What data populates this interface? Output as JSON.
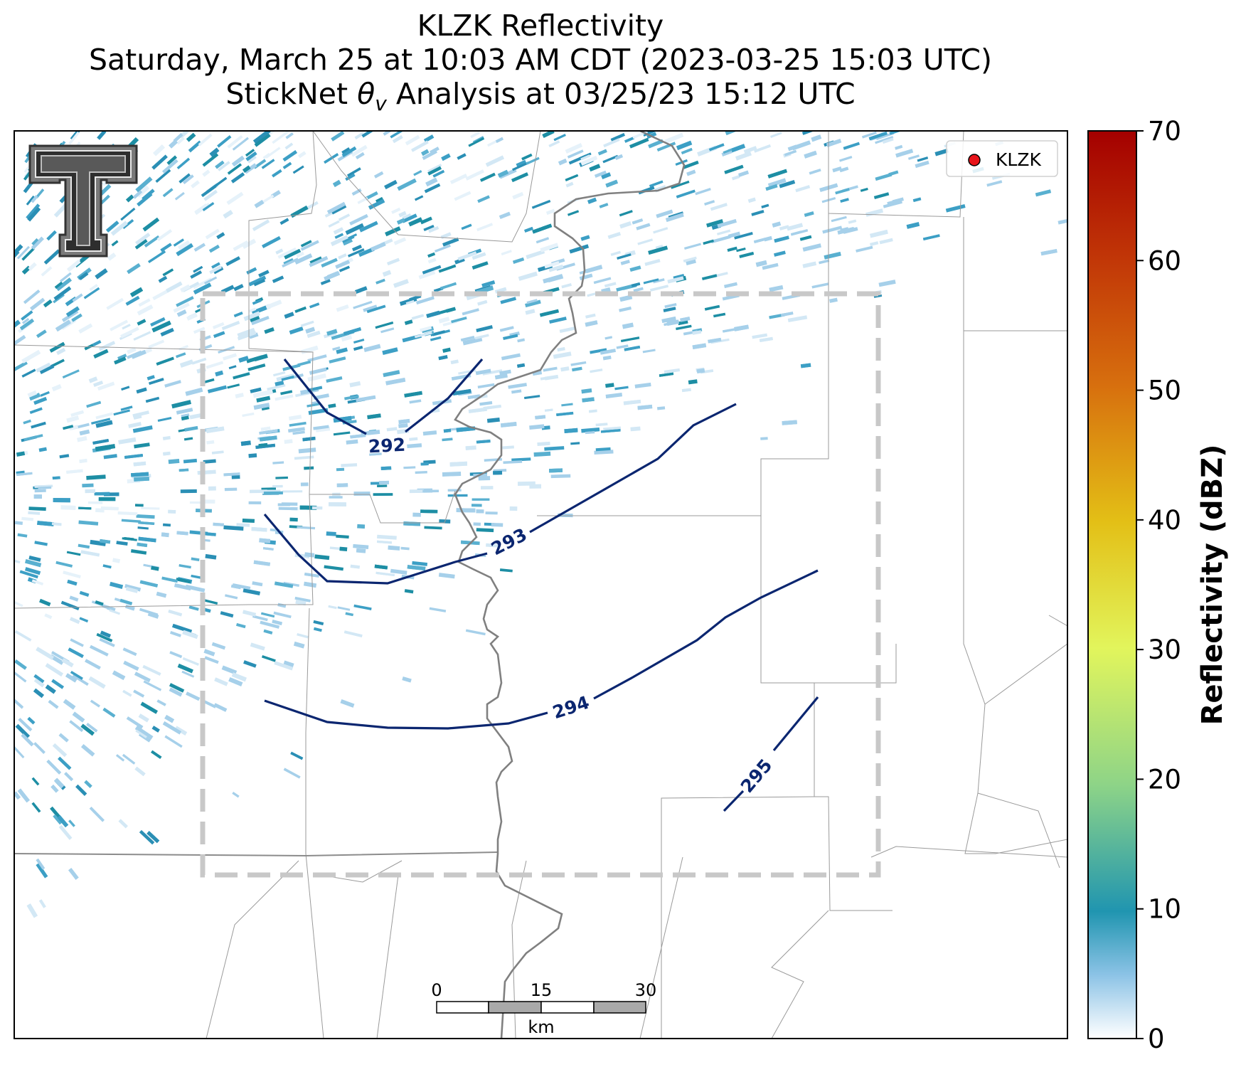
{
  "title": {
    "line1": "KLZK Reflectivity",
    "line2": "Saturday, March 25 at 10:03 AM CDT (2023-03-25 15:03 UTC)",
    "line3_prefix": "StickNet ",
    "line3_theta": "θ",
    "line3_sub": "v",
    "line3_suffix": " Analysis at 03/25/23 15:12 UTC"
  },
  "legend": {
    "station": "KLZK",
    "marker_color": "#e8141a"
  },
  "colorbar": {
    "label": "Reflectivity (dBZ)",
    "ticks": [
      "0",
      "10",
      "20",
      "30",
      "40",
      "50",
      "60",
      "70"
    ],
    "range": [
      0,
      70
    ]
  },
  "contours": [
    {
      "value": 292,
      "label": "292"
    },
    {
      "value": 293,
      "label": "293"
    },
    {
      "value": 294,
      "label": "294"
    },
    {
      "value": 295,
      "label": "295"
    }
  ],
  "scalebar": {
    "ticks": [
      "0",
      "15",
      "30"
    ],
    "unit": "km"
  },
  "colors": {
    "contour": "#0b2670",
    "county_lines": "#9a9a9a",
    "river": "#7c7c7c",
    "domain_box": "#c8c8c8",
    "reflectivity_light": "#a6d0ea",
    "reflectivity_mid": "#3c9fc5",
    "reflectivity_dark": "#1d8ea4"
  }
}
